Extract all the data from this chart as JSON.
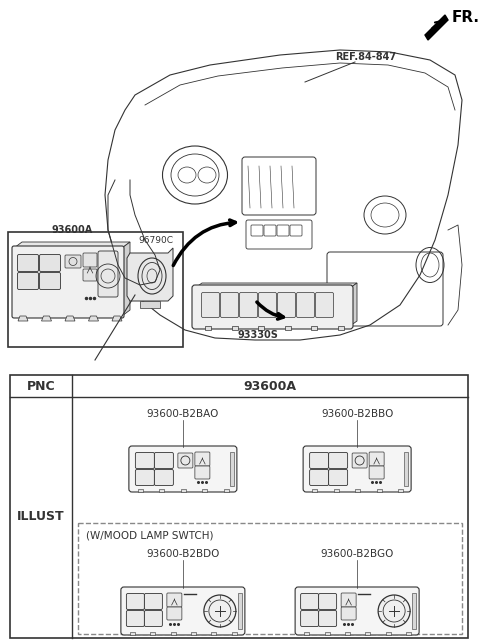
{
  "bg_color": "#ffffff",
  "line_color": "#333333",
  "fr_text": "FR.",
  "ref_text": "REF.84-847",
  "label_93600A": "93600A",
  "label_96790C": "96790C",
  "label_93330S": "93330S",
  "table_pnc": "PNC",
  "table_col": "93600A",
  "illust_label": "ILLUST",
  "mood_lamp_text": "(W/MOOD LAMP SWTCH)",
  "parts": [
    {
      "code": "93600-B2BAO",
      "has_dial": false
    },
    {
      "code": "93600-B2BBO",
      "has_dial": false
    },
    {
      "code": "93600-B2BDO",
      "has_dial": true
    },
    {
      "code": "93600-B2BGO",
      "has_dial": true
    }
  ]
}
